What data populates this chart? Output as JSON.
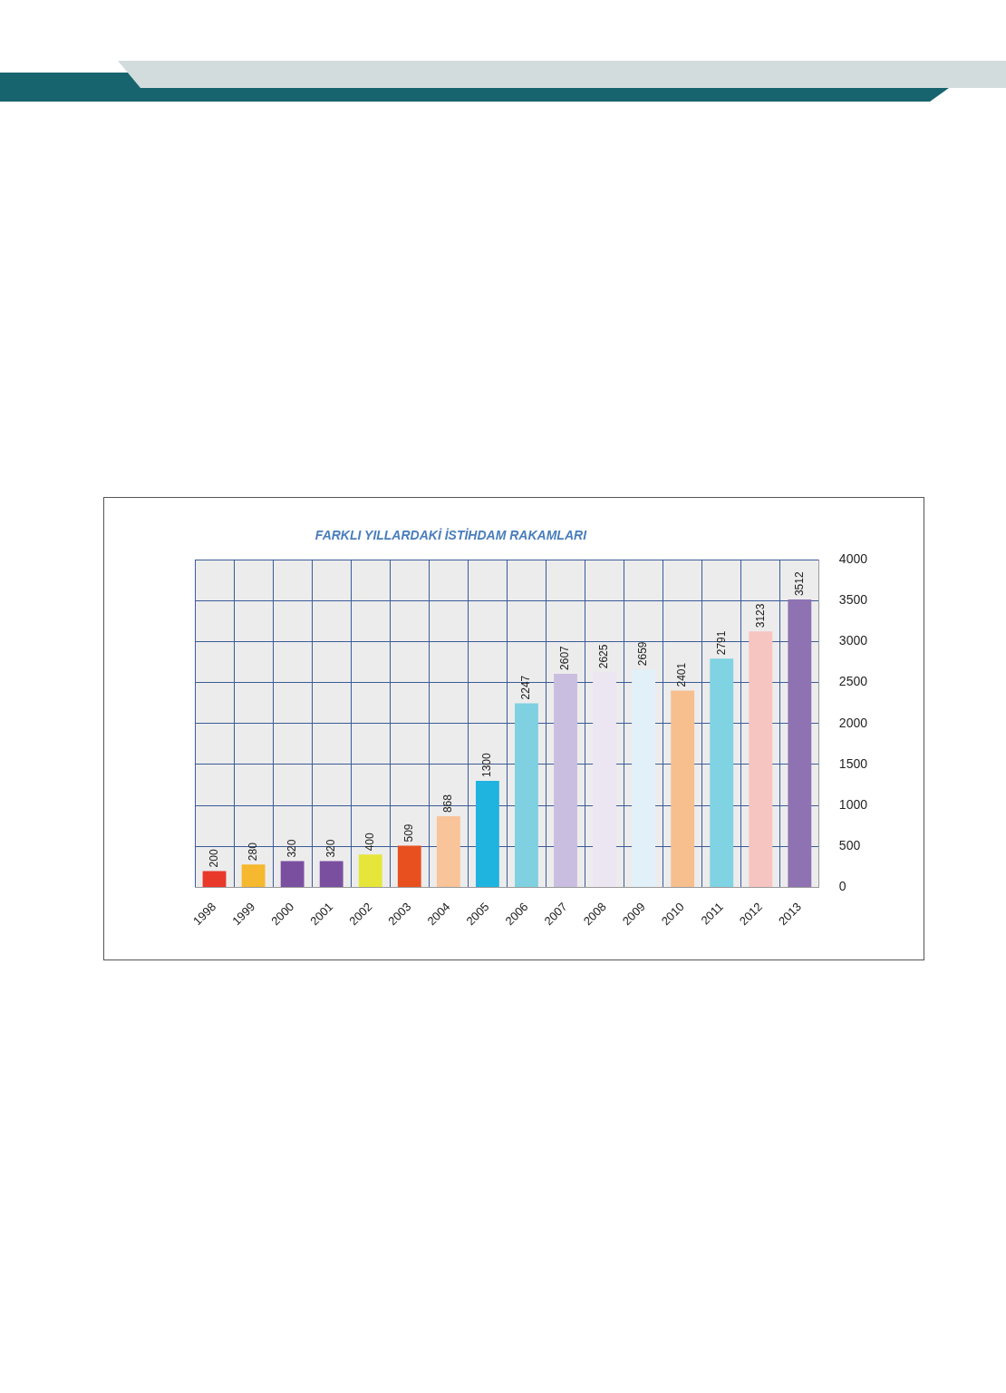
{
  "chart_data": {
    "type": "bar",
    "title": "FARKLI YILLARDAKİ İSTİHDAM RAKAMLARI",
    "categories": [
      "1998",
      "1999",
      "2000",
      "2001",
      "2002",
      "2003",
      "2004",
      "2005",
      "2006",
      "2007",
      "2008",
      "2009",
      "2010",
      "2011",
      "2012",
      "2013"
    ],
    "values": [
      200,
      280,
      320,
      320,
      400,
      509,
      868,
      1300,
      2247,
      2607,
      2625,
      2659,
      2401,
      2791,
      3123,
      3512
    ],
    "colors": [
      "#e8392b",
      "#f5b82e",
      "#7a4fa0",
      "#7a4fa0",
      "#e6e63a",
      "#e8501f",
      "#f9c49a",
      "#1fb4e0",
      "#7fd0e0",
      "#c9bedf",
      "#ece6f2",
      "#e2f0fa",
      "#f7be8e",
      "#7fd3e3",
      "#f7c5c1",
      "#8e72b2"
    ],
    "ylim": [
      0,
      4000
    ],
    "yticks": [
      0,
      500,
      1000,
      1500,
      2000,
      2500,
      3000,
      3500,
      4000
    ],
    "grid": true,
    "data_labels": true
  }
}
